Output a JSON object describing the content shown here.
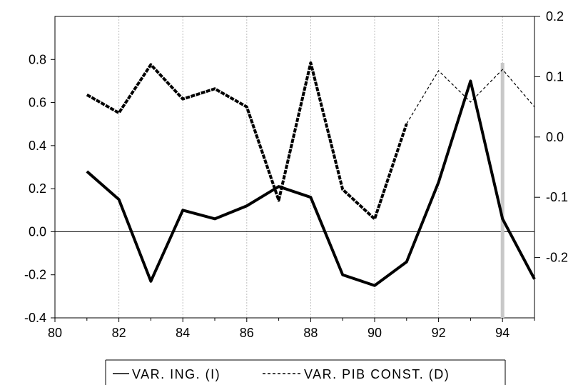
{
  "chart_data": {
    "type": "line",
    "x": [
      81,
      82,
      83,
      84,
      85,
      86,
      87,
      88,
      89,
      90,
      91,
      92,
      93,
      94,
      95
    ],
    "xlim": [
      80,
      95
    ],
    "xticks": [
      "80",
      "82",
      "84",
      "86",
      "88",
      "90",
      "92",
      "94"
    ],
    "grid": "vertical",
    "series": [
      {
        "name": "VAR. ING. (I)",
        "axis": "left",
        "style": "solid",
        "values": [
          0.28,
          0.15,
          -0.23,
          0.1,
          0.06,
          0.12,
          0.21,
          0.16,
          -0.2,
          -0.25,
          -0.14,
          0.23,
          0.7,
          0.06,
          -0.22
        ]
      },
      {
        "name": "VAR. PIB CONST. (D)",
        "axis": "right",
        "style": "dashed",
        "values": [
          0.07,
          0.04,
          0.12,
          0.063,
          0.08,
          0.05,
          -0.105,
          0.123,
          -0.087,
          -0.136,
          0.022,
          0.11,
          0.058,
          0.112,
          0.05
        ]
      }
    ],
    "left_axis": {
      "ylim": [
        -0.4,
        1.0
      ],
      "ticks": [
        "-0.4",
        "-0.2",
        "0.0",
        "0.2",
        "0.4",
        "0.6",
        "0.8"
      ]
    },
    "right_axis": {
      "ylim": [
        -0.3,
        0.2
      ],
      "ticks": [
        "-0.2",
        "-0.1",
        "0.0",
        "0.1",
        "0.2"
      ]
    },
    "highlight_x": 94,
    "legend_position": "bottom",
    "colors": {
      "line": "#000000",
      "grid": "#bfbfbf",
      "highlight": "#c8c8c8"
    }
  }
}
